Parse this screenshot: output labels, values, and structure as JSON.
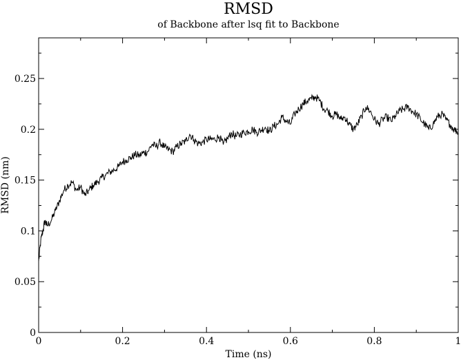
{
  "chart_data": {
    "type": "line",
    "title": "RMSD",
    "subtitle": "of Backbone after lsq fit to Backbone",
    "xlabel": "Time (ns)",
    "ylabel": "RMSD (nm)",
    "xlim": [
      0,
      1
    ],
    "ylim": [
      0,
      0.29
    ],
    "x_ticks": [
      "0",
      "0.2",
      "0.4",
      "0.6",
      "0.8",
      "1"
    ],
    "y_ticks": [
      "0",
      "0.05",
      "0.1",
      "0.15",
      "0.2",
      "0.25"
    ],
    "grid": false,
    "series": [
      {
        "color": "#000000",
        "x": [
          0.0,
          0.005,
          0.01,
          0.015,
          0.02,
          0.03,
          0.04,
          0.05,
          0.06,
          0.07,
          0.08,
          0.09,
          0.1,
          0.11,
          0.12,
          0.13,
          0.14,
          0.15,
          0.16,
          0.17,
          0.18,
          0.19,
          0.2,
          0.21,
          0.22,
          0.23,
          0.24,
          0.25,
          0.26,
          0.27,
          0.28,
          0.29,
          0.3,
          0.31,
          0.32,
          0.33,
          0.34,
          0.35,
          0.36,
          0.37,
          0.38,
          0.39,
          0.4,
          0.41,
          0.42,
          0.43,
          0.44,
          0.45,
          0.46,
          0.47,
          0.48,
          0.49,
          0.5,
          0.51,
          0.52,
          0.53,
          0.54,
          0.55,
          0.56,
          0.57,
          0.58,
          0.59,
          0.6,
          0.61,
          0.62,
          0.63,
          0.64,
          0.65,
          0.66,
          0.67,
          0.68,
          0.69,
          0.7,
          0.71,
          0.72,
          0.73,
          0.74,
          0.75,
          0.76,
          0.77,
          0.78,
          0.79,
          0.8,
          0.81,
          0.82,
          0.83,
          0.84,
          0.85,
          0.86,
          0.87,
          0.88,
          0.89,
          0.9,
          0.91,
          0.92,
          0.93,
          0.94,
          0.95,
          0.96,
          0.97,
          0.98,
          0.99,
          1.0
        ],
        "y": [
          0.07,
          0.09,
          0.1,
          0.11,
          0.105,
          0.11,
          0.12,
          0.13,
          0.14,
          0.145,
          0.148,
          0.14,
          0.143,
          0.135,
          0.14,
          0.145,
          0.148,
          0.152,
          0.155,
          0.158,
          0.16,
          0.163,
          0.168,
          0.17,
          0.172,
          0.175,
          0.174,
          0.177,
          0.178,
          0.185,
          0.183,
          0.187,
          0.182,
          0.18,
          0.178,
          0.183,
          0.186,
          0.188,
          0.195,
          0.19,
          0.186,
          0.187,
          0.19,
          0.19,
          0.19,
          0.193,
          0.185,
          0.191,
          0.196,
          0.193,
          0.195,
          0.197,
          0.198,
          0.2,
          0.197,
          0.199,
          0.202,
          0.198,
          0.203,
          0.205,
          0.212,
          0.208,
          0.205,
          0.215,
          0.22,
          0.225,
          0.228,
          0.23,
          0.232,
          0.228,
          0.22,
          0.218,
          0.213,
          0.215,
          0.21,
          0.212,
          0.205,
          0.2,
          0.205,
          0.213,
          0.222,
          0.218,
          0.21,
          0.205,
          0.21,
          0.212,
          0.208,
          0.213,
          0.218,
          0.22,
          0.222,
          0.218,
          0.215,
          0.21,
          0.205,
          0.2,
          0.205,
          0.212,
          0.215,
          0.21,
          0.205,
          0.2,
          0.197
        ]
      }
    ]
  }
}
